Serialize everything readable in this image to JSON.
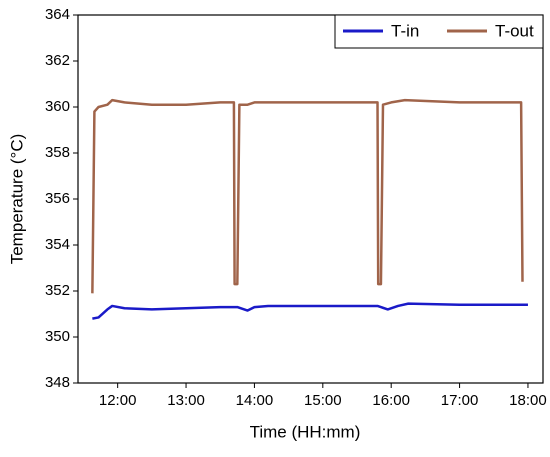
{
  "chart_data": {
    "type": "line",
    "x_label": "Time (HH:mm)",
    "y_label": "Temperature (°C)",
    "xlim": [
      11.42,
      18.22
    ],
    "ylim": [
      348,
      364
    ],
    "xticks": [
      {
        "value": 12,
        "label": "12:00"
      },
      {
        "value": 13,
        "label": "13:00"
      },
      {
        "value": 14,
        "label": "14:00"
      },
      {
        "value": 15,
        "label": "15:00"
      },
      {
        "value": 16,
        "label": "16:00"
      },
      {
        "value": 17,
        "label": "17:00"
      },
      {
        "value": 18,
        "label": "18:00"
      }
    ],
    "yticks": [
      348,
      350,
      352,
      354,
      356,
      358,
      360,
      362,
      364
    ],
    "grid": false,
    "legend": "top-right",
    "series": [
      {
        "name": "T-in",
        "color": "#1a1ac8",
        "x": [
          11.63,
          11.72,
          11.85,
          11.92,
          12.1,
          12.5,
          13.0,
          13.5,
          13.75,
          13.9,
          14.0,
          14.2,
          15.0,
          15.8,
          15.95,
          16.1,
          16.25,
          17.0,
          18.0
        ],
        "values": [
          350.8,
          350.85,
          351.2,
          351.35,
          351.25,
          351.2,
          351.25,
          351.3,
          351.3,
          351.15,
          351.3,
          351.35,
          351.35,
          351.35,
          351.2,
          351.35,
          351.45,
          351.4,
          351.4
        ]
      },
      {
        "name": "T-out",
        "color": "#a0644a",
        "x": [
          11.63,
          11.66,
          11.72,
          11.85,
          11.92,
          12.1,
          12.5,
          13.0,
          13.5,
          13.7,
          13.71,
          13.75,
          13.78,
          13.9,
          14.0,
          15.0,
          15.8,
          15.81,
          15.85,
          15.88,
          16.0,
          16.2,
          17.0,
          17.9,
          17.92
        ],
        "values": [
          351.9,
          359.8,
          360.0,
          360.1,
          360.3,
          360.2,
          360.1,
          360.1,
          360.2,
          360.2,
          352.3,
          352.3,
          360.1,
          360.1,
          360.2,
          360.2,
          360.2,
          352.3,
          352.3,
          360.1,
          360.2,
          360.3,
          360.2,
          360.2,
          352.4
        ]
      }
    ]
  }
}
